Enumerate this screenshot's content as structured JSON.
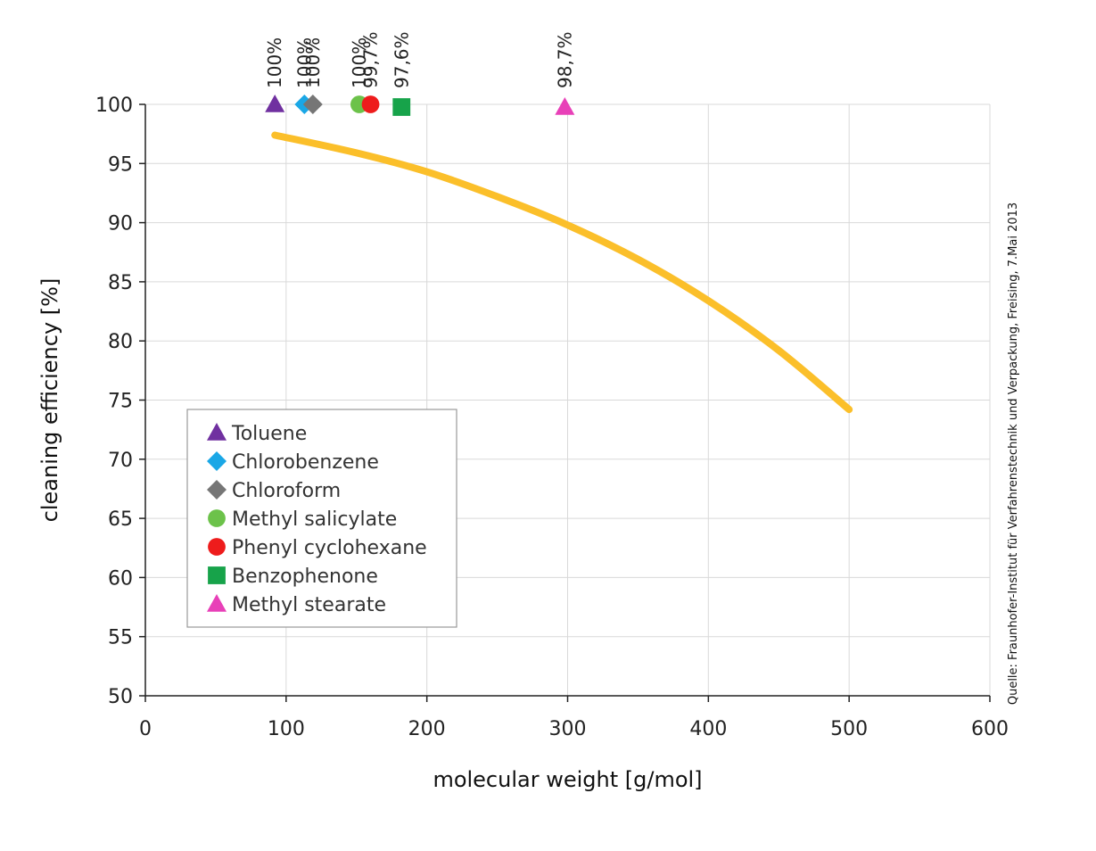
{
  "chart_data": {
    "type": "scatter",
    "title": "",
    "xlabel": "molecular weight [g/mol]",
    "ylabel": "cleaning efficiency  [%]",
    "xlim": [
      0,
      600
    ],
    "ylim": [
      50,
      100
    ],
    "x_ticks": [
      0,
      100,
      200,
      300,
      400,
      500,
      600
    ],
    "y_ticks": [
      50,
      55,
      60,
      65,
      70,
      75,
      80,
      85,
      90,
      95,
      100
    ],
    "grid": true,
    "legend_position": "lower-left",
    "series": [
      {
        "name": "Toluene",
        "marker": "triangle",
        "color": "#7030a0",
        "x": 92,
        "y": 100,
        "label": "100%"
      },
      {
        "name": "Chlorobenzene",
        "marker": "diamond",
        "color": "#1aa7e6",
        "x": 113,
        "y": 100,
        "label": "100%"
      },
      {
        "name": "Chloroform",
        "marker": "diamond",
        "color": "#767676",
        "x": 119,
        "y": 100,
        "label": "100%"
      },
      {
        "name": "Methyl salicylate",
        "marker": "circle",
        "color": "#6cc24a",
        "x": 152,
        "y": 100,
        "label": "100%"
      },
      {
        "name": "Phenyl cyclohexane",
        "marker": "circle",
        "color": "#ee1c1c",
        "x": 160,
        "y": 99.7,
        "label": "99,7%"
      },
      {
        "name": "Benzophenone",
        "marker": "square",
        "color": "#17a34a",
        "x": 182,
        "y": 97.6,
        "label": "97,6%"
      },
      {
        "name": "Methyl stearate",
        "marker": "triangle",
        "color": "#e840b8",
        "x": 298,
        "y": 98.7,
        "label": "98,7%"
      }
    ],
    "curve": {
      "color": "#fbbf2a",
      "x": [
        92,
        150,
        200,
        250,
        300,
        350,
        400,
        450,
        500
      ],
      "y": [
        97.4,
        95.9,
        94.3,
        92.2,
        89.8,
        86.9,
        83.4,
        79.2,
        74.2
      ]
    },
    "source_note": "Quelle: Fraunhofer-Institut für Verfahrenstechnik und Verpackung, Freising, 7.Mai 2013"
  }
}
